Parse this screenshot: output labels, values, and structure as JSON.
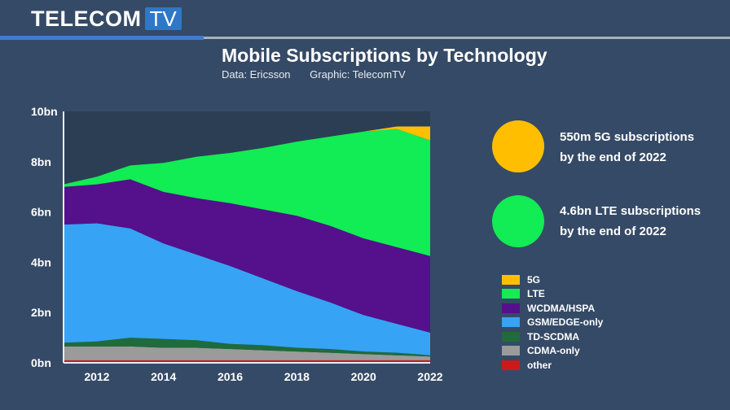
{
  "brand": {
    "name": "TELECOM",
    "box": "TV"
  },
  "header": {
    "title": "Mobile Subscriptions by Technology",
    "source": "Data: Ericsson",
    "credit": "Graphic: TelecomTV"
  },
  "callouts": [
    {
      "line1": "550m 5G subscriptions",
      "line2": "by the end of 2022",
      "color": "#ffbf00"
    },
    {
      "line1": "4.6bn LTE subscriptions",
      "line2": "by the end of 2022",
      "color": "#12ec55"
    }
  ],
  "chart_data": {
    "type": "area",
    "stacked": true,
    "title": "Mobile Subscriptions by Technology",
    "x": [
      2011,
      2012,
      2013,
      2014,
      2015,
      2016,
      2017,
      2018,
      2019,
      2020,
      2021,
      2022
    ],
    "xticks": [
      2012,
      2014,
      2016,
      2018,
      2020,
      2022
    ],
    "xlim": [
      2011,
      2022
    ],
    "ylim": [
      0,
      10
    ],
    "yticks": [
      0,
      2,
      4,
      6,
      8,
      10
    ],
    "ytick_labels": [
      "0bn",
      "2bn",
      "4bn",
      "6bn",
      "8bn",
      "10bn"
    ],
    "plot_background": "#2c3e54",
    "series": [
      {
        "name": "other",
        "color": "#cc1a1a",
        "values": [
          0.1,
          0.1,
          0.1,
          0.1,
          0.1,
          0.1,
          0.1,
          0.1,
          0.1,
          0.1,
          0.1,
          0.1
        ]
      },
      {
        "name": "CDMA-only",
        "color": "#9b9b9b",
        "values": [
          0.55,
          0.55,
          0.55,
          0.5,
          0.5,
          0.45,
          0.4,
          0.35,
          0.3,
          0.25,
          0.2,
          0.15
        ]
      },
      {
        "name": "TD-SCDMA",
        "color": "#1f6b3b",
        "values": [
          0.15,
          0.2,
          0.35,
          0.35,
          0.3,
          0.2,
          0.2,
          0.15,
          0.15,
          0.1,
          0.1,
          0.05
        ]
      },
      {
        "name": "GSM/EDGE-only",
        "color": "#36a3f5",
        "values": [
          4.7,
          4.7,
          4.35,
          3.8,
          3.4,
          3.1,
          2.65,
          2.25,
          1.85,
          1.45,
          1.15,
          0.9
        ]
      },
      {
        "name": "WCDMA/HSPA",
        "color": "#55108c",
        "values": [
          1.5,
          1.55,
          1.95,
          2.05,
          2.25,
          2.5,
          2.75,
          3.0,
          3.05,
          3.05,
          3.05,
          3.05
        ]
      },
      {
        "name": "LTE",
        "color": "#12ec55",
        "values": [
          0.1,
          0.3,
          0.55,
          1.15,
          1.65,
          2.0,
          2.45,
          2.95,
          3.55,
          4.25,
          4.7,
          4.6
        ]
      },
      {
        "name": "5G",
        "color": "#ffbf00",
        "values": [
          0,
          0,
          0,
          0,
          0,
          0,
          0,
          0,
          0,
          0,
          0.1,
          0.55
        ]
      }
    ],
    "legend": [
      "5G",
      "LTE",
      "WCDMA/HSPA",
      "GSM/EDGE-only",
      "TD-SCDMA",
      "CDMA-only",
      "other"
    ]
  }
}
